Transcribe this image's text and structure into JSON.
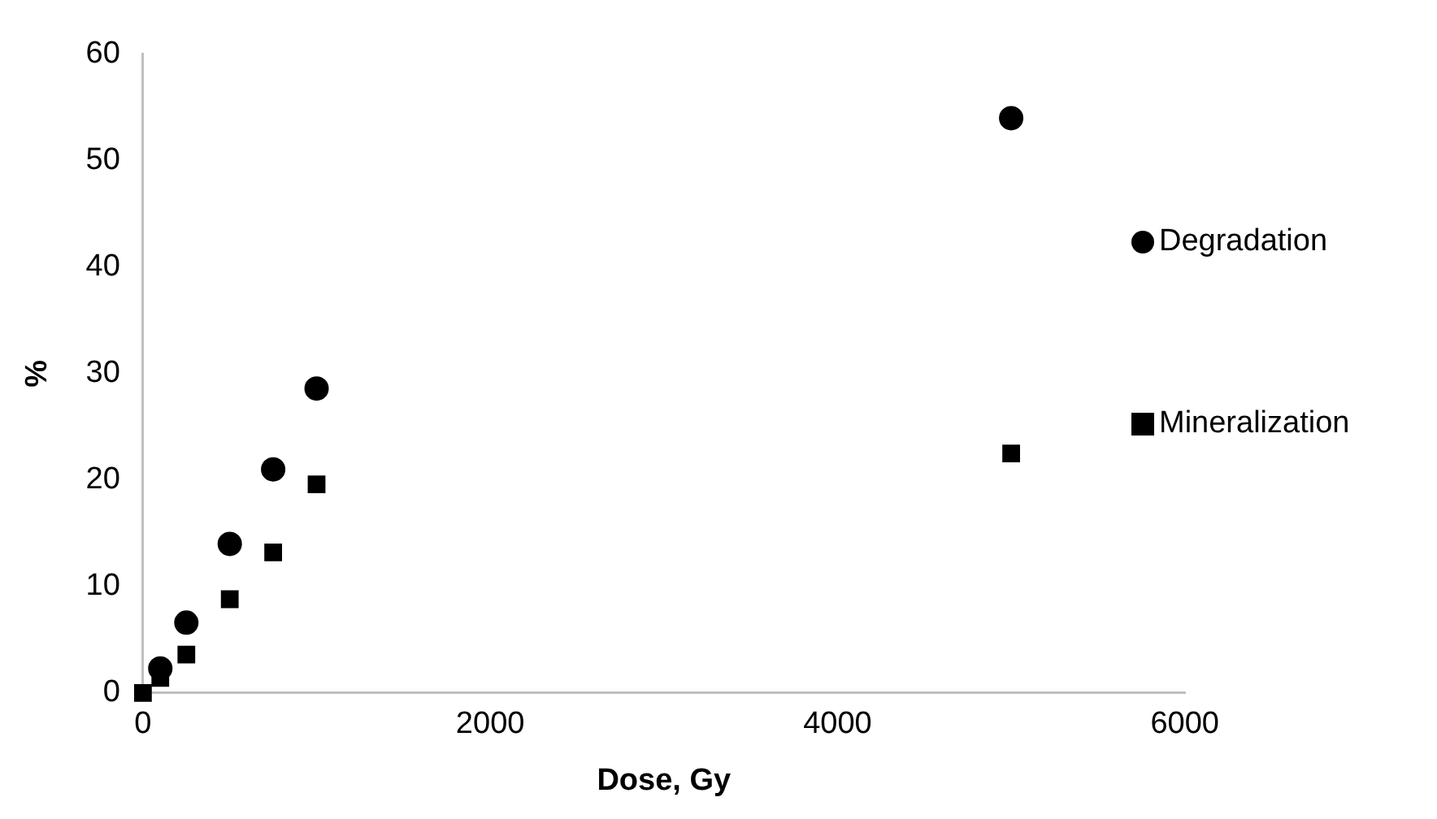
{
  "chart_data": {
    "type": "scatter",
    "xlabel": "Dose, Gy",
    "ylabel": "%",
    "xlim": [
      0,
      6000
    ],
    "xticks": [
      0,
      2000,
      4000,
      6000
    ],
    "ylim": [
      0,
      60
    ],
    "yticks": [
      0,
      10,
      20,
      30,
      40,
      50,
      60
    ],
    "grid": false,
    "legend": "right",
    "series": [
      {
        "name": "Degradation",
        "color": "#000000",
        "marker": "circle",
        "x": [
          100,
          250,
          500,
          750,
          1000,
          5000
        ],
        "values": [
          2.3,
          6.6,
          14,
          21,
          28.6,
          54
        ]
      },
      {
        "name": "Mineralization",
        "color": "#000000",
        "marker": "square",
        "x": [
          0,
          100,
          250,
          500,
          750,
          1000,
          5000
        ],
        "values": [
          0,
          1.4,
          3.6,
          8.8,
          13.2,
          19.6,
          22.5
        ]
      }
    ]
  }
}
